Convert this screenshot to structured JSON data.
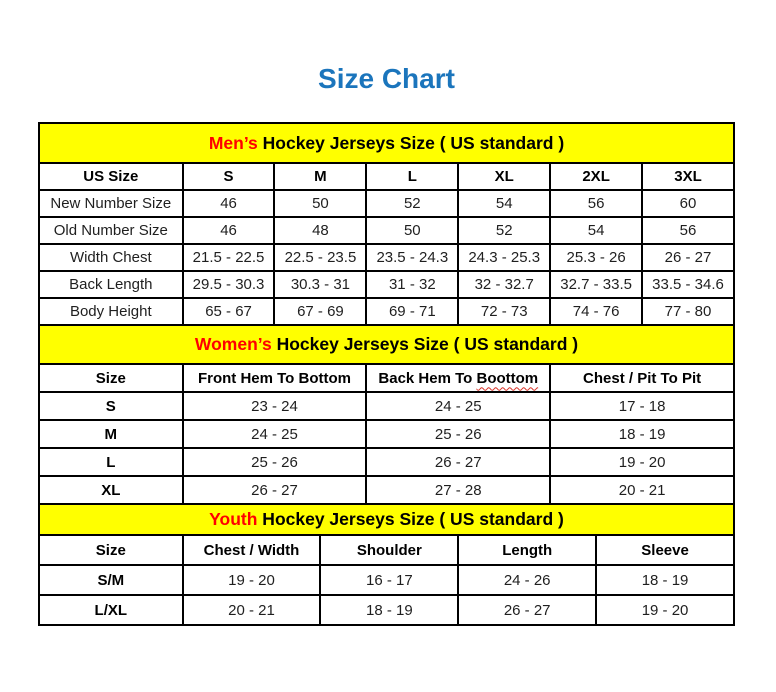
{
  "page": {
    "title": "Size Chart"
  },
  "colors": {
    "title_blue": "#1b75bc",
    "accent_red": "#ff0000",
    "band_yellow": "#ffff00",
    "border_black": "#000000"
  },
  "chart_data": [
    {
      "type": "table",
      "id": "mens",
      "heading_accent": "Men’s",
      "heading_rest": " Hockey Jerseys Size ( US standard )",
      "columns": [
        "US Size",
        "S",
        "M",
        "L",
        "XL",
        "2XL",
        "3XL"
      ],
      "rows": [
        {
          "label": "New Number Size",
          "values": [
            "46",
            "50",
            "52",
            "54",
            "56",
            "60"
          ]
        },
        {
          "label": "Old Number Size",
          "values": [
            "46",
            "48",
            "50",
            "52",
            "54",
            "56"
          ]
        },
        {
          "label": "Width Chest",
          "values": [
            "21.5 - 22.5",
            "22.5 - 23.5",
            "23.5 - 24.3",
            "24.3 - 25.3",
            "25.3 - 26",
            "26 - 27"
          ]
        },
        {
          "label": "Back Length",
          "values": [
            "29.5 - 30.3",
            "30.3 - 31",
            "31 - 32",
            "32 - 32.7",
            "32.7 - 33.5",
            "33.5 - 34.6"
          ]
        },
        {
          "label": "Body Height",
          "values": [
            "65 - 67",
            "67 - 69",
            "69 - 71",
            "72 - 73",
            "74 - 76",
            "77 - 80"
          ]
        }
      ]
    },
    {
      "type": "table",
      "id": "womens",
      "heading_accent": "Women’s",
      "heading_rest": " Hockey Jerseys Size ( US standard )",
      "columns": [
        "Size",
        "Front Hem To Bottom",
        "Back Hem To Boottom",
        "Chest / Pit To Pit"
      ],
      "spellcheck": {
        "column_index": 2,
        "word": "Boottom"
      },
      "rows": [
        {
          "label": "S",
          "values": [
            "23 - 24",
            "24 - 25",
            "17 - 18"
          ]
        },
        {
          "label": "M",
          "values": [
            "24 - 25",
            "25 - 26",
            "18 - 19"
          ]
        },
        {
          "label": "L",
          "values": [
            "25 - 26",
            "26 - 27",
            "19 - 20"
          ]
        },
        {
          "label": "XL",
          "values": [
            "26 - 27",
            "27 - 28",
            "20 - 21"
          ]
        }
      ]
    },
    {
      "type": "table",
      "id": "youth",
      "heading_accent": "Youth",
      "heading_rest": " Hockey Jerseys Size ( US standard )",
      "columns": [
        "Size",
        "Chest / Width",
        "Shoulder",
        "Length",
        "Sleeve"
      ],
      "rows": [
        {
          "label": "S/M",
          "values": [
            "19 - 20",
            "16 - 17",
            "24 - 26",
            "18 - 19"
          ]
        },
        {
          "label": "L/XL",
          "values": [
            "20 - 21",
            "18 - 19",
            "26 - 27",
            "19 - 20"
          ]
        }
      ]
    }
  ]
}
